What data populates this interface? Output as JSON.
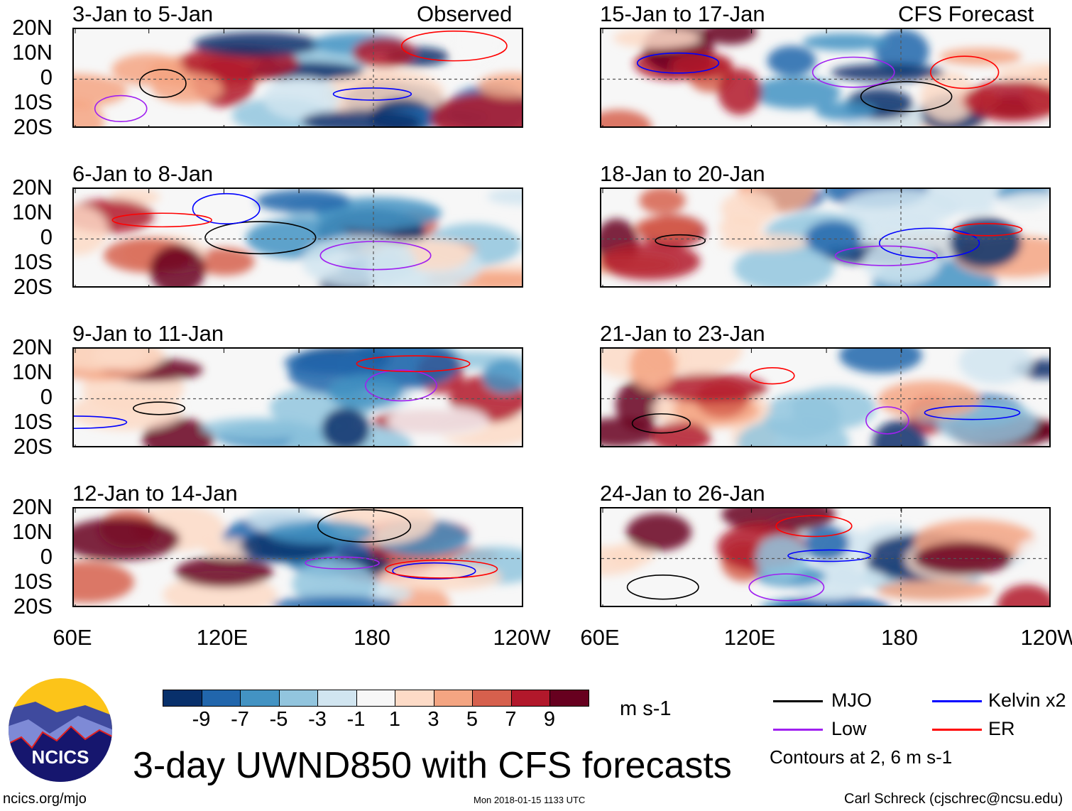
{
  "panels": {
    "left": [
      {
        "title": "3-Jan to 5-Jan",
        "tag": "Observed"
      },
      {
        "title": "6-Jan to 8-Jan"
      },
      {
        "title": "9-Jan to 11-Jan"
      },
      {
        "title": "12-Jan to 14-Jan"
      }
    ],
    "right": [
      {
        "title": "15-Jan to 17-Jan",
        "tag": "CFS Forecast"
      },
      {
        "title": "18-Jan to 20-Jan"
      },
      {
        "title": "21-Jan to 23-Jan"
      },
      {
        "title": "24-Jan to 26-Jan"
      }
    ]
  },
  "lat_labels": [
    "20N",
    "10N",
    "0",
    "10S",
    "20S"
  ],
  "lon_labels": [
    "60E",
    "120E",
    "180",
    "120W"
  ],
  "colorbar": {
    "colors": [
      "#08306b",
      "#2166ac",
      "#4393c3",
      "#92c5de",
      "#d1e5f0",
      "#f7f7f7",
      "#fddbc7",
      "#f4a582",
      "#d6604d",
      "#b2182b",
      "#67001f"
    ],
    "ticks": [
      "-9",
      "-7",
      "-5",
      "-3",
      "-1",
      "1",
      "3",
      "5",
      "7",
      "9"
    ],
    "units": "m s-1"
  },
  "legend": {
    "items": [
      {
        "label": "MJO",
        "color": "#000000"
      },
      {
        "label": "Kelvin x2",
        "color": "#0000ff"
      },
      {
        "label": "Low",
        "color": "#a020f0"
      },
      {
        "label": "ER",
        "color": "#ff0000"
      }
    ],
    "note": "Contours at 2, 6 m s-1"
  },
  "logo_text": "NCICS",
  "main_title": "3-day UWND850 with CFS forecasts",
  "footer": {
    "url": "ncics.org/mjo",
    "timestamp": "Mon 2018-01-15 1133 UTC",
    "credit": "Carl Schreck (cjschrec@ncsu.edu)"
  }
}
